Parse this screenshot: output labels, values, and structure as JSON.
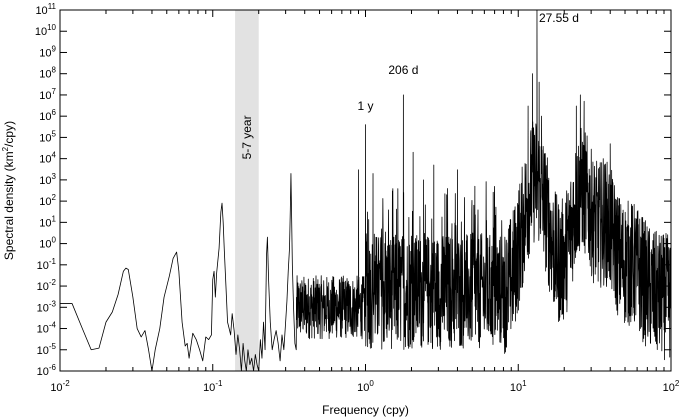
{
  "chart_data": {
    "type": "line",
    "title": "",
    "xlabel": "Frequency (cpy)",
    "ylabel_main": "Spectral density (km",
    "ylabel_sup": "2",
    "ylabel_tail": "/cpy)",
    "xscale": "log",
    "yscale": "log",
    "xlim": [
      0.01,
      100
    ],
    "ylim": [
      1e-06,
      100000000000.0
    ],
    "grid": false,
    "x_ticks": [
      {
        "v": 0.01,
        "b": "10",
        "e": "-2"
      },
      {
        "v": 0.1,
        "b": "10",
        "e": "-1"
      },
      {
        "v": 1,
        "b": "10",
        "e": "0"
      },
      {
        "v": 10,
        "b": "10",
        "e": "1"
      },
      {
        "v": 100,
        "b": "10",
        "e": "2"
      }
    ],
    "y_ticks": [
      {
        "v": 1e-06,
        "b": "10",
        "e": "-6"
      },
      {
        "v": 1e-05,
        "b": "10",
        "e": "-5"
      },
      {
        "v": 0.0001,
        "b": "10",
        "e": "-4"
      },
      {
        "v": 0.001,
        "b": "10",
        "e": "-3"
      },
      {
        "v": 0.01,
        "b": "10",
        "e": "-2"
      },
      {
        "v": 0.1,
        "b": "10",
        "e": "-1"
      },
      {
        "v": 1,
        "b": "10",
        "e": "0"
      },
      {
        "v": 10.0,
        "b": "10",
        "e": "1"
      },
      {
        "v": 100.0,
        "b": "10",
        "e": "2"
      },
      {
        "v": 1000.0,
        "b": "10",
        "e": "3"
      },
      {
        "v": 10000.0,
        "b": "10",
        "e": "4"
      },
      {
        "v": 100000.0,
        "b": "10",
        "e": "5"
      },
      {
        "v": 1000000.0,
        "b": "10",
        "e": "6"
      },
      {
        "v": 10000000.0,
        "b": "10",
        "e": "7"
      },
      {
        "v": 100000000.0,
        "b": "10",
        "e": "8"
      },
      {
        "v": 1000000000.0,
        "b": "10",
        "e": "9"
      },
      {
        "v": 10000000000.0,
        "b": "10",
        "e": "10"
      },
      {
        "v": 100000000000.0,
        "b": "10",
        "e": "11"
      }
    ],
    "shaded_band": {
      "x0": 0.14,
      "x1": 0.2,
      "label": "5-7 year",
      "color": "#e2e2e2"
    },
    "annotations": [
      {
        "text": "1 y",
        "x": 1.0,
        "y": 1000000.0
      },
      {
        "text": "206 d",
        "x": 1.77,
        "y": 50000000.0
      },
      {
        "text": "27.55 d",
        "x": 13.26,
        "y": 100000000000.0
      }
    ],
    "series": [
      {
        "color": "#000000",
        "points": [
          [
            0.01,
            0.0015
          ],
          [
            0.012,
            0.0015
          ],
          [
            0.014,
            0.0001
          ],
          [
            0.016,
            1e-05
          ],
          [
            0.018,
            1.2e-05
          ],
          [
            0.02,
            0.0002
          ],
          [
            0.022,
            0.0006
          ],
          [
            0.024,
            0.004
          ],
          [
            0.026,
            0.05
          ],
          [
            0.027,
            0.07
          ],
          [
            0.028,
            0.06
          ],
          [
            0.03,
            0.003
          ],
          [
            0.032,
            0.0001
          ],
          [
            0.034,
            4e-05
          ],
          [
            0.036,
            8e-05
          ],
          [
            0.038,
            1e-05
          ],
          [
            0.04,
            1e-06
          ],
          [
            0.042,
            1e-05
          ],
          [
            0.045,
            0.0001
          ],
          [
            0.048,
            0.003
          ],
          [
            0.052,
            0.03
          ],
          [
            0.055,
            0.2
          ],
          [
            0.058,
            0.4
          ],
          [
            0.06,
            0.05
          ],
          [
            0.063,
            0.0002
          ],
          [
            0.066,
            1.5e-05
          ],
          [
            0.068,
            2e-05
          ],
          [
            0.07,
            4e-06
          ],
          [
            0.074,
            6e-05
          ],
          [
            0.078,
            3e-05
          ],
          [
            0.082,
            1e-05
          ],
          [
            0.086,
            3e-06
          ],
          [
            0.09,
            4e-05
          ],
          [
            0.094,
            3e-05
          ],
          [
            0.098,
            5e-05
          ],
          [
            0.1,
            0.02
          ],
          [
            0.102,
            0.05
          ],
          [
            0.104,
            0.003
          ],
          [
            0.106,
            0.04
          ],
          [
            0.11,
            0.6
          ],
          [
            0.113,
            30
          ],
          [
            0.115,
            80
          ],
          [
            0.117,
            10
          ],
          [
            0.119,
            0.5
          ],
          [
            0.122,
            0.01
          ],
          [
            0.125,
            0.0002
          ],
          [
            0.128,
            0.0001
          ],
          [
            0.131,
            5e-05
          ],
          [
            0.134,
            0.0005
          ],
          [
            0.138,
            8e-05
          ],
          [
            0.142,
            6e-06
          ],
          [
            0.146,
            5e-05
          ],
          [
            0.15,
            1e-05
          ],
          [
            0.154,
            1e-06
          ],
          [
            0.158,
            2e-05
          ],
          [
            0.162,
            3e-06
          ],
          [
            0.166,
            1e-06
          ],
          [
            0.17,
            1e-05
          ],
          [
            0.175,
            2e-06
          ],
          [
            0.18,
            4e-06
          ],
          [
            0.185,
            1e-06
          ],
          [
            0.19,
            6e-06
          ],
          [
            0.195,
            2e-06
          ],
          [
            0.2,
            1e-06
          ],
          [
            0.205,
            3e-05
          ],
          [
            0.21,
            4e-06
          ],
          [
            0.215,
            0.0002
          ],
          [
            0.22,
            1e-05
          ],
          [
            0.225,
            0.3
          ],
          [
            0.228,
            2
          ],
          [
            0.232,
            0.02
          ],
          [
            0.238,
            0.0002
          ],
          [
            0.245,
            1e-05
          ],
          [
            0.252,
            3e-05
          ],
          [
            0.26,
            8e-05
          ],
          [
            0.268,
            2e-05
          ],
          [
            0.276,
            3e-06
          ],
          [
            0.284,
            5e-05
          ],
          [
            0.292,
            1e-05
          ],
          [
            0.3,
            0.0002
          ],
          [
            0.306,
            0.002
          ],
          [
            0.312,
            0.05
          ],
          [
            0.318,
            0.6
          ],
          [
            0.322,
            40
          ],
          [
            0.325,
            2000
          ],
          [
            0.328,
            30
          ],
          [
            0.332,
            0.1
          ],
          [
            0.338,
            0.001
          ],
          [
            0.345,
            2e-05
          ],
          [
            0.352,
            1e-05
          ]
        ]
      }
    ]
  }
}
